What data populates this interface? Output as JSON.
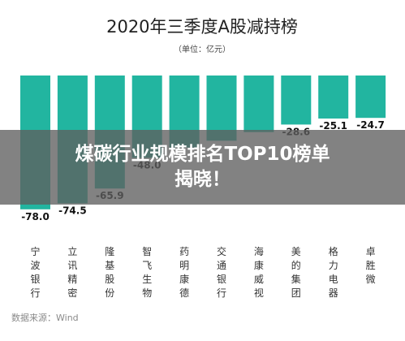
{
  "chart_data": {
    "type": "bar",
    "title": "2020年三季度A股减持榜",
    "unit_label": "（单位：亿元）",
    "categories": [
      "宁波银行",
      "立讯精密",
      "隆基股份",
      "智飞生物",
      "药明康德",
      "交通银行",
      "海康威视",
      "美的集团",
      "格力电器",
      "卓胜微"
    ],
    "values": [
      -78.0,
      -74.5,
      -65.9,
      -48.0,
      -42.0,
      -38.0,
      -33.0,
      -28.6,
      -25.1,
      -24.7
    ],
    "value_labels": [
      "-78.0",
      "-74.5",
      "-65.9",
      "-48.0",
      "",
      "",
      "",
      "-28.6",
      "-25.1",
      "-24.7"
    ],
    "ylim": [
      -80,
      0
    ],
    "grid": false,
    "bar_color": "#22b5a0",
    "source": "数据来源：Wind"
  },
  "overlay": {
    "line1": "煤碳行业规模排名TOP10榜单",
    "line2": "揭晓！"
  }
}
